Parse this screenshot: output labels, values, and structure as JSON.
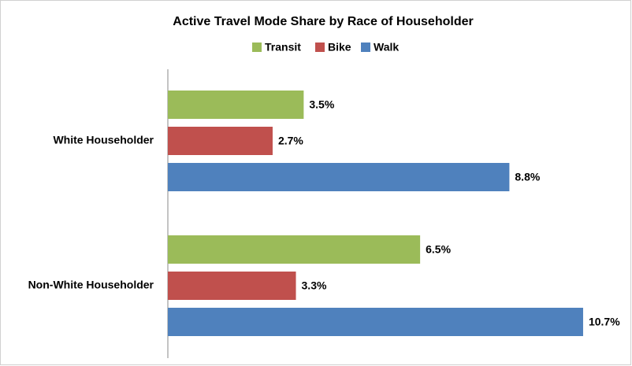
{
  "chart_data": {
    "type": "bar",
    "orientation": "horizontal",
    "title": "Active Travel Mode Share by Race of Householder",
    "categories": [
      "White Householder",
      "Non-White Householder"
    ],
    "series": [
      {
        "name": "Transit",
        "color": "#9bbb59",
        "values": [
          3.5,
          6.5
        ],
        "value_labels": [
          "3.5%",
          "6.5%"
        ]
      },
      {
        "name": "Bike",
        "color": "#c0504d",
        "values": [
          2.7,
          3.3
        ],
        "value_labels": [
          "2.7%",
          "3.3%"
        ]
      },
      {
        "name": "Walk",
        "color": "#4f81bd",
        "values": [
          8.8,
          10.7
        ],
        "value_labels": [
          "8.8%",
          "10.7%"
        ]
      }
    ],
    "legend": "top"
  }
}
